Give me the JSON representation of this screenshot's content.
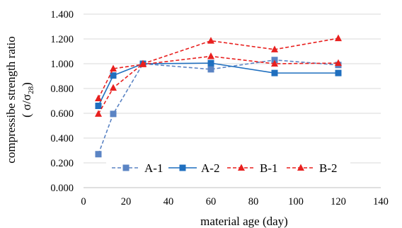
{
  "chart_data": {
    "type": "line",
    "xlabel": "material age (day)",
    "ylabel_main": "compressibe strength ratio",
    "ylabel_sub": {
      "open": "( σ/σ",
      "sub": "28",
      "close": ")"
    },
    "xlim": [
      0,
      140
    ],
    "ylim": [
      0,
      1.4
    ],
    "x_ticks": [
      "0",
      "20",
      "40",
      "60",
      "80",
      "100",
      "120",
      "140"
    ],
    "y_ticks": [
      "0.000",
      "0.200",
      "0.400",
      "0.600",
      "0.800",
      "1.000",
      "1.200",
      "1.400"
    ],
    "grid": "horizontal",
    "legend_position": "bottom",
    "series": [
      {
        "name": "A-1",
        "color": "#5b84c4",
        "marker": "square",
        "dash": true,
        "x": [
          7,
          14,
          28,
          60,
          90,
          120
        ],
        "y": [
          0.27,
          0.595,
          1.0,
          0.955,
          1.03,
          0.99
        ]
      },
      {
        "name": "A-2",
        "color": "#1f6fbf",
        "marker": "square",
        "dash": false,
        "x": [
          7,
          14,
          28,
          60,
          90,
          120
        ],
        "y": [
          0.66,
          0.905,
          1.0,
          1.005,
          0.925,
          0.925
        ]
      },
      {
        "name": "B-1",
        "color": "#e8201f",
        "marker": "triangle",
        "dash": true,
        "x": [
          7,
          14,
          28,
          60,
          90,
          120
        ],
        "y": [
          0.595,
          0.805,
          1.0,
          1.185,
          1.115,
          1.205
        ]
      },
      {
        "name": "B-2",
        "color": "#e8201f",
        "marker": "triangle",
        "dash": true,
        "x": [
          7,
          14,
          28,
          60,
          90,
          120
        ],
        "y": [
          0.72,
          0.96,
          0.995,
          1.06,
          1.0,
          1.005
        ]
      }
    ]
  }
}
